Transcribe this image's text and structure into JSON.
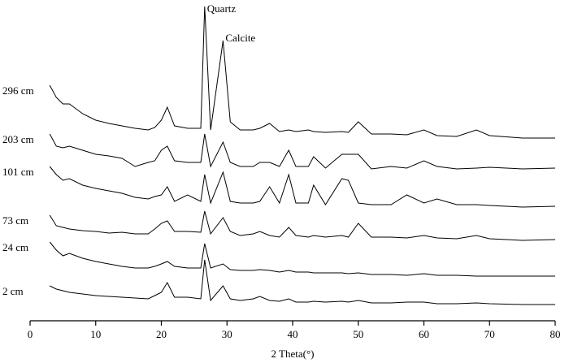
{
  "chart_data": {
    "type": "line",
    "x_label": "2 Theta(°)",
    "xlim": [
      0,
      80
    ],
    "xticks": [
      0,
      10,
      20,
      30,
      40,
      50,
      60,
      70,
      80
    ],
    "ylim": [
      0,
      395
    ],
    "color": "#000000",
    "annotations": [
      {
        "text": "Quartz",
        "x": 26.6
      },
      {
        "text": "Calcite",
        "x": 29.4
      }
    ],
    "x": [
      3,
      4,
      5,
      6,
      8,
      10,
      12,
      14,
      16,
      18,
      19,
      20,
      20.9,
      22,
      24,
      26,
      26.6,
      27.5,
      29.4,
      30.5,
      32,
      34,
      35,
      36.5,
      38,
      39.4,
      40.5,
      42.4,
      43.2,
      45,
      47.5,
      48.5,
      50,
      52,
      55,
      57.4,
      60,
      62,
      65,
      68,
      70,
      75,
      80
    ],
    "series": [
      {
        "name": "296 cm",
        "values": [
          290,
          275,
          267,
          267,
          255,
          247,
          243,
          240,
          237,
          235,
          238,
          247,
          263,
          240,
          237,
          237,
          387,
          235,
          345,
          245,
          235,
          235,
          237,
          243,
          233,
          235,
          233,
          235,
          233,
          232,
          233,
          232,
          245,
          230,
          230,
          229,
          235,
          228,
          227,
          235,
          228,
          225,
          225
        ]
      },
      {
        "name": "203 cm",
        "values": [
          230,
          215,
          213,
          215,
          210,
          205,
          203,
          200,
          190,
          195,
          197,
          210,
          215,
          197,
          195,
          195,
          230,
          190,
          220,
          195,
          190,
          190,
          195,
          195,
          190,
          210,
          190,
          190,
          202,
          188,
          205,
          205,
          205,
          187,
          190,
          188,
          197,
          190,
          187,
          188,
          189,
          187,
          188
        ]
      },
      {
        "name": "101 cm",
        "values": [
          190,
          180,
          173,
          175,
          167,
          163,
          160,
          157,
          152,
          150,
          153,
          155,
          165,
          147,
          155,
          147,
          180,
          145,
          183,
          147,
          145,
          145,
          147,
          165,
          145,
          180,
          145,
          145,
          167,
          143,
          175,
          173,
          145,
          143,
          143,
          155,
          145,
          150,
          143,
          143,
          142,
          140,
          141
        ]
      },
      {
        "name": "73 cm",
        "values": [
          130,
          117,
          115,
          113,
          111,
          110,
          108,
          109,
          107,
          107,
          113,
          120,
          123,
          110,
          110,
          109,
          135,
          107,
          127,
          110,
          105,
          107,
          110,
          105,
          103,
          115,
          105,
          103,
          105,
          103,
          105,
          103,
          120,
          103,
          103,
          102,
          105,
          102,
          101,
          105,
          101,
          99,
          100
        ]
      },
      {
        "name": "24 cm",
        "values": [
          97,
          87,
          80,
          83,
          77,
          73,
          70,
          67,
          65,
          65,
          67,
          70,
          73,
          67,
          65,
          65,
          95,
          65,
          70,
          63,
          62,
          62,
          63,
          62,
          60,
          62,
          60,
          60,
          59,
          59,
          59,
          58,
          59,
          57,
          57,
          56,
          58,
          56,
          56,
          55,
          55,
          55,
          55
        ]
      },
      {
        "name": "2 cm",
        "values": [
          43,
          39,
          37,
          35,
          33,
          31,
          30,
          29,
          28,
          27,
          31,
          35,
          47,
          29,
          29,
          27,
          75,
          25,
          43,
          27,
          25,
          27,
          30,
          25,
          24,
          27,
          23,
          23,
          24,
          23,
          24,
          23,
          25,
          22,
          22,
          23,
          23,
          21,
          21,
          22,
          21,
          20,
          20
        ]
      }
    ]
  }
}
